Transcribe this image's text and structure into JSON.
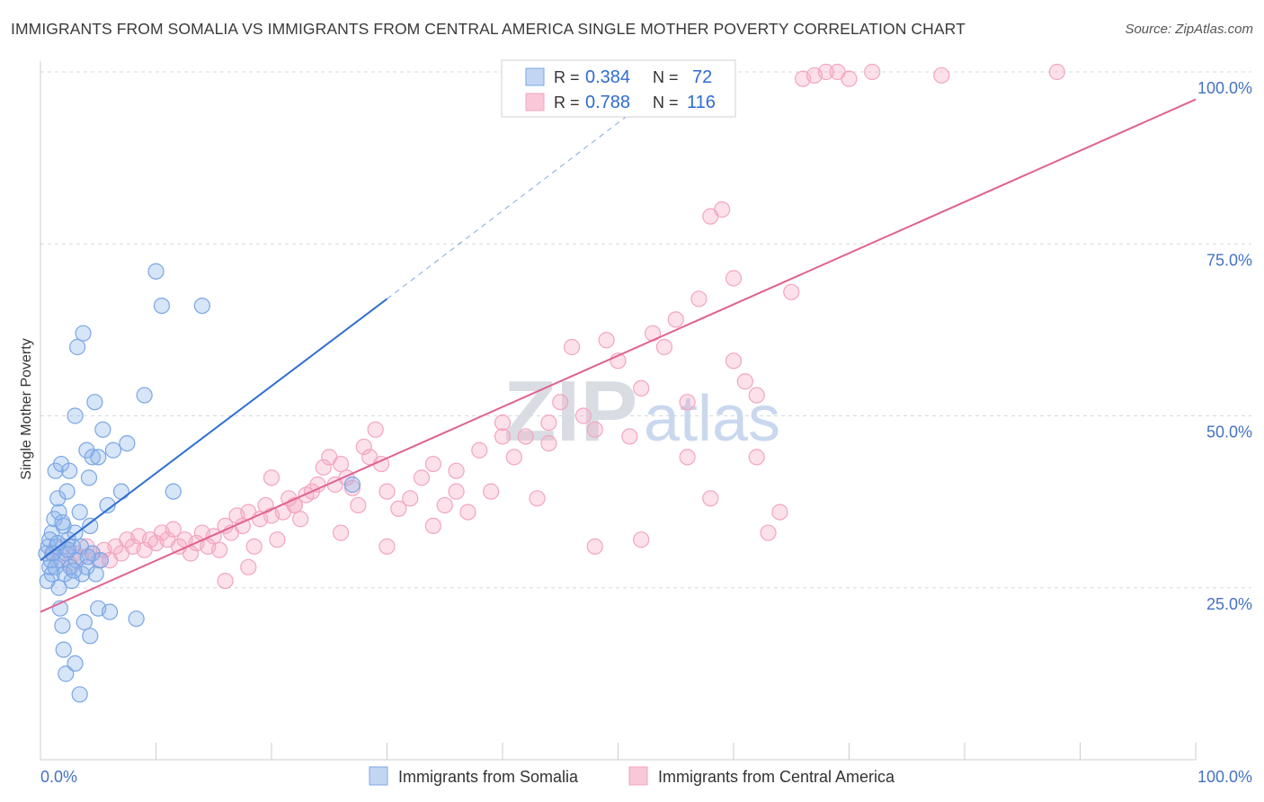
{
  "title": "IMMIGRANTS FROM SOMALIA VS IMMIGRANTS FROM CENTRAL AMERICA SINGLE MOTHER POVERTY CORRELATION CHART",
  "source": "Source: ZipAtlas.com",
  "watermark": {
    "zip": "ZIP",
    "atlas": "atlas"
  },
  "colors": {
    "somalia": "#7aa6e6",
    "somalia_line": "#2f6fd0",
    "central": "#f2a5bf",
    "central_line": "#e0628e",
    "axis_label": "#4472c4",
    "grid": "#d8d8d8"
  },
  "legend": {
    "r_label": "R =",
    "n_label": "N =",
    "rows": [
      {
        "r": "0.384",
        "n": "72"
      },
      {
        "r": "0.788",
        "n": "116"
      }
    ]
  },
  "chart_data": {
    "type": "scatter",
    "title": "IMMIGRANTS FROM SOMALIA VS IMMIGRANTS FROM CENTRAL AMERICA SINGLE MOTHER POVERTY CORRELATION CHART",
    "xlabel": "",
    "ylabel": "Single Mother Poverty",
    "xlim": [
      0,
      100
    ],
    "ylim": [
      0,
      105
    ],
    "x_tick_labels": [
      "0.0%",
      "100.0%"
    ],
    "y_tick_labels": [
      "25.0%",
      "50.0%",
      "75.0%",
      "100.0%"
    ],
    "y_ticks": [
      25,
      50,
      75,
      100
    ],
    "series": [
      {
        "name": "Immigrants from Somalia",
        "r": 0.384,
        "n": 72,
        "trend": {
          "x0": 0,
          "y0": 29,
          "x1": 30,
          "y1": 67,
          "dash_x1": 55,
          "dash_y1": 99
        },
        "points": [
          [
            0.5,
            30
          ],
          [
            0.7,
            31
          ],
          [
            0.8,
            28
          ],
          [
            0.9,
            29
          ],
          [
            1,
            33
          ],
          [
            1.2,
            35
          ],
          [
            1.4,
            31
          ],
          [
            1.6,
            36
          ],
          [
            1.8,
            29
          ],
          [
            2,
            34
          ],
          [
            2.2,
            30
          ],
          [
            2.4,
            32
          ],
          [
            2.6,
            28
          ],
          [
            2.8,
            31
          ],
          [
            3,
            33
          ],
          [
            0.6,
            26
          ],
          [
            1,
            27
          ],
          [
            1.3,
            42
          ],
          [
            1.5,
            38
          ],
          [
            1.8,
            43
          ],
          [
            2.3,
            39
          ],
          [
            2.5,
            42
          ],
          [
            3,
            50
          ],
          [
            3.4,
            36
          ],
          [
            3.7,
            62
          ],
          [
            4,
            45
          ],
          [
            4.2,
            41
          ],
          [
            4.5,
            44
          ],
          [
            4.7,
            52
          ],
          [
            5,
            44
          ],
          [
            5.4,
            48
          ],
          [
            5.8,
            37
          ],
          [
            6.3,
            45
          ],
          [
            7,
            39
          ],
          [
            7.5,
            46
          ],
          [
            3.2,
            60
          ],
          [
            3.5,
            31
          ],
          [
            4,
            28
          ],
          [
            4.3,
            34
          ],
          [
            4.5,
            30
          ],
          [
            4.8,
            27
          ],
          [
            5.2,
            29
          ],
          [
            1.7,
            22
          ],
          [
            1.9,
            19.5
          ],
          [
            2,
            16
          ],
          [
            2.2,
            12.5
          ],
          [
            3,
            14
          ],
          [
            3.4,
            9.5
          ],
          [
            3.8,
            20
          ],
          [
            4.3,
            18
          ],
          [
            5,
            22
          ],
          [
            6,
            21.5
          ],
          [
            8.3,
            20.5
          ],
          [
            9,
            53
          ],
          [
            10,
            71
          ],
          [
            10.5,
            66
          ],
          [
            14,
            66
          ],
          [
            11.5,
            39
          ],
          [
            27,
            40
          ],
          [
            0.8,
            32
          ],
          [
            1.1,
            30
          ],
          [
            1.3,
            28
          ],
          [
            1.6,
            25
          ],
          [
            2.1,
            27
          ],
          [
            2.7,
            26
          ],
          [
            3.1,
            29
          ],
          [
            3.6,
            27
          ],
          [
            4.1,
            29.5
          ],
          [
            1.9,
            34.5
          ],
          [
            2.4,
            30.5
          ],
          [
            1.5,
            31.5
          ],
          [
            2.9,
            27.5
          ]
        ]
      },
      {
        "name": "Immigrants from Central America",
        "r": 0.788,
        "n": 116,
        "trend": {
          "x0": 0,
          "y0": 21.5,
          "x1": 100,
          "y1": 96
        },
        "points": [
          [
            1,
            30
          ],
          [
            1.5,
            29
          ],
          [
            2,
            31
          ],
          [
            2.5,
            28.5
          ],
          [
            3,
            30
          ],
          [
            3.5,
            29.5
          ],
          [
            4,
            31
          ],
          [
            4.5,
            30
          ],
          [
            5,
            29
          ],
          [
            5.5,
            30.5
          ],
          [
            6,
            29
          ],
          [
            6.5,
            31
          ],
          [
            7,
            30
          ],
          [
            7.5,
            32
          ],
          [
            8,
            31
          ],
          [
            8.5,
            32.5
          ],
          [
            9,
            30.5
          ],
          [
            9.5,
            32
          ],
          [
            10,
            31.5
          ],
          [
            10.5,
            33
          ],
          [
            11,
            32
          ],
          [
            11.5,
            33.5
          ],
          [
            12,
            31
          ],
          [
            12.5,
            32
          ],
          [
            13,
            30
          ],
          [
            13.5,
            31.5
          ],
          [
            14,
            33
          ],
          [
            14.5,
            31
          ],
          [
            15,
            32.5
          ],
          [
            15.5,
            30.5
          ],
          [
            16,
            34
          ],
          [
            16.5,
            33
          ],
          [
            17,
            35.5
          ],
          [
            17.5,
            34
          ],
          [
            18,
            36
          ],
          [
            18.5,
            31
          ],
          [
            19,
            35
          ],
          [
            19.5,
            37
          ],
          [
            20,
            35.5
          ],
          [
            20.5,
            32
          ],
          [
            21,
            36
          ],
          [
            21.5,
            38
          ],
          [
            22,
            37
          ],
          [
            22.5,
            35
          ],
          [
            23,
            38.5
          ],
          [
            23.5,
            39
          ],
          [
            24,
            40
          ],
          [
            24.5,
            42.5
          ],
          [
            25,
            44
          ],
          [
            25.5,
            40
          ],
          [
            26,
            43
          ],
          [
            26.5,
            41
          ],
          [
            27,
            39.5
          ],
          [
            27.5,
            37
          ],
          [
            28,
            45.5
          ],
          [
            28.5,
            44
          ],
          [
            29,
            48
          ],
          [
            29.5,
            43
          ],
          [
            30,
            39
          ],
          [
            31,
            36.5
          ],
          [
            32,
            38
          ],
          [
            33,
            41
          ],
          [
            34,
            43
          ],
          [
            35,
            37
          ],
          [
            36,
            42
          ],
          [
            37,
            36
          ],
          [
            38,
            45
          ],
          [
            39,
            39
          ],
          [
            40,
            49
          ],
          [
            41,
            44
          ],
          [
            42,
            47
          ],
          [
            43,
            38
          ],
          [
            44,
            46
          ],
          [
            45,
            52
          ],
          [
            46,
            60
          ],
          [
            47,
            50
          ],
          [
            48,
            48
          ],
          [
            49,
            61
          ],
          [
            50,
            58
          ],
          [
            51,
            47
          ],
          [
            52,
            54
          ],
          [
            53,
            62
          ],
          [
            54,
            60
          ],
          [
            55,
            64
          ],
          [
            56,
            52
          ],
          [
            57,
            67
          ],
          [
            58,
            79
          ],
          [
            59,
            80
          ],
          [
            60,
            70
          ],
          [
            61,
            55
          ],
          [
            62,
            53
          ],
          [
            63,
            33
          ],
          [
            64,
            36
          ],
          [
            65,
            68
          ],
          [
            66,
            99
          ],
          [
            67,
            99.5
          ],
          [
            68,
            100
          ],
          [
            69,
            100
          ],
          [
            70,
            99
          ],
          [
            72,
            100
          ],
          [
            78,
            99.5
          ],
          [
            88,
            100
          ],
          [
            20,
            41
          ],
          [
            22,
            37
          ],
          [
            26,
            33
          ],
          [
            30,
            31
          ],
          [
            34,
            34
          ],
          [
            36,
            39
          ],
          [
            40,
            47
          ],
          [
            44,
            49
          ],
          [
            48,
            31
          ],
          [
            52,
            32
          ],
          [
            56,
            44
          ],
          [
            58,
            38
          ],
          [
            60,
            58
          ],
          [
            62,
            44
          ],
          [
            18,
            28
          ],
          [
            16,
            26
          ]
        ]
      }
    ]
  },
  "bottom_legend": {
    "items": [
      {
        "label": "Immigrants from Somalia"
      },
      {
        "label": "Immigrants from Central America"
      }
    ]
  }
}
